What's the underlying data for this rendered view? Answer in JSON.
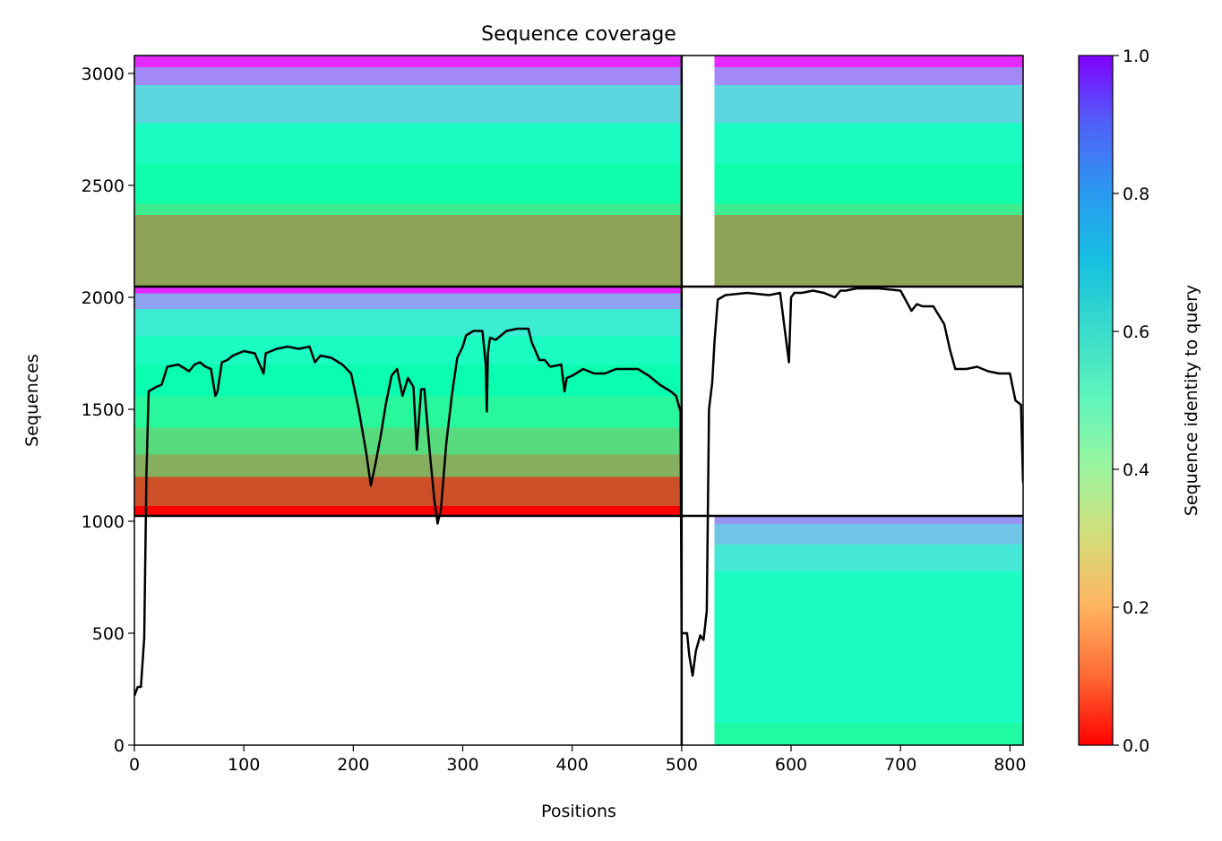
{
  "chart_data": {
    "type": "heatmap",
    "title": "Sequence coverage",
    "xlabel": "Positions",
    "ylabel": "Sequences",
    "xlim": [
      0,
      812
    ],
    "ylim": [
      0,
      3080
    ],
    "x_ticks": [
      0,
      100,
      200,
      300,
      400,
      500,
      600,
      700,
      800
    ],
    "y_ticks": [
      0,
      500,
      1000,
      1500,
      2000,
      2500,
      3000
    ],
    "colorbar": {
      "label": "Sequence identity to query",
      "range": [
        0,
        1
      ],
      "ticks": [
        "0.0",
        "0.2",
        "0.4",
        "0.6",
        "0.8",
        "1.0"
      ],
      "colormap": "rainbow_r",
      "colors": [
        "#ff0000",
        "#ffb360",
        "#80ffb4",
        "#00b4eb",
        "#8000ff"
      ]
    },
    "blocks": [
      {
        "name": "block-top-left",
        "x": [
          0,
          499
        ],
        "y": [
          2048,
          3080
        ],
        "bands": [
          [
            2048,
            2370,
            0.22
          ],
          [
            2370,
            2420,
            0.38
          ],
          [
            2420,
            2600,
            0.47
          ],
          [
            2600,
            2780,
            0.55
          ],
          [
            2780,
            2950,
            0.68
          ],
          [
            2950,
            3030,
            0.82
          ],
          [
            3030,
            3080,
            0.95
          ]
        ]
      },
      {
        "name": "block-top-right",
        "x": [
          530,
          812
        ],
        "y": [
          2048,
          3080
        ],
        "bands": [
          [
            2048,
            2370,
            0.22
          ],
          [
            2370,
            2420,
            0.38
          ],
          [
            2420,
            2600,
            0.47
          ],
          [
            2600,
            2780,
            0.55
          ],
          [
            2780,
            2950,
            0.68
          ],
          [
            2950,
            3030,
            0.82
          ],
          [
            3030,
            3080,
            0.95
          ]
        ]
      },
      {
        "name": "block-middle-left",
        "x": [
          0,
          499
        ],
        "y": [
          1024,
          2048
        ],
        "bands": [
          [
            1024,
            1070,
            0.0
          ],
          [
            1070,
            1200,
            0.1
          ],
          [
            1200,
            1300,
            0.24
          ],
          [
            1300,
            1420,
            0.33
          ],
          [
            1420,
            1560,
            0.42
          ],
          [
            1560,
            1700,
            0.48
          ],
          [
            1700,
            1830,
            0.55
          ],
          [
            1830,
            1950,
            0.62
          ],
          [
            1950,
            2020,
            0.78
          ],
          [
            2020,
            2048,
            0.95
          ]
        ]
      },
      {
        "name": "block-bottom-right",
        "x": [
          530,
          812
        ],
        "y": [
          0,
          1024
        ],
        "bands": [
          [
            0,
            100,
            0.44
          ],
          [
            100,
            780,
            0.55
          ],
          [
            780,
            900,
            0.64
          ],
          [
            900,
            990,
            0.72
          ],
          [
            990,
            1024,
            0.8
          ]
        ]
      }
    ],
    "boundaries": {
      "x": 500,
      "y": [
        1024,
        2048
      ]
    },
    "coverage_line": {
      "name": "Coverage",
      "x": [
        0,
        3,
        6,
        9,
        11,
        13,
        20,
        25,
        30,
        40,
        50,
        55,
        60,
        65,
        70,
        74,
        76,
        80,
        85,
        90,
        100,
        110,
        118,
        120,
        130,
        140,
        150,
        160,
        165,
        170,
        180,
        190,
        198,
        205,
        212,
        216,
        220,
        225,
        230,
        235,
        240,
        245,
        250,
        255,
        258,
        262,
        265,
        270,
        274,
        277,
        280,
        285,
        290,
        295,
        300,
        303,
        310,
        318,
        321,
        322,
        323,
        325,
        330,
        340,
        350,
        360,
        363,
        370,
        375,
        380,
        390,
        393,
        395,
        400,
        410,
        420,
        430,
        440,
        450,
        460,
        470,
        480,
        490,
        495,
        499,
        500,
        505,
        507,
        510,
        513,
        517,
        520,
        523,
        525,
        528,
        530,
        533,
        540,
        560,
        580,
        590,
        598,
        600,
        603,
        610,
        620,
        630,
        640,
        645,
        650,
        660,
        680,
        700,
        710,
        715,
        720,
        730,
        740,
        745,
        750,
        755,
        760,
        770,
        780,
        790,
        800,
        805,
        810,
        812
      ],
      "y": [
        220,
        260,
        260,
        480,
        1200,
        1580,
        1600,
        1610,
        1690,
        1700,
        1670,
        1700,
        1710,
        1690,
        1680,
        1560,
        1580,
        1710,
        1720,
        1740,
        1760,
        1750,
        1660,
        1750,
        1770,
        1780,
        1770,
        1780,
        1710,
        1740,
        1730,
        1700,
        1660,
        1500,
        1300,
        1160,
        1250,
        1380,
        1530,
        1650,
        1680,
        1560,
        1640,
        1600,
        1320,
        1590,
        1590,
        1300,
        1100,
        990,
        1050,
        1350,
        1560,
        1730,
        1780,
        1830,
        1850,
        1850,
        1700,
        1490,
        1750,
        1820,
        1810,
        1850,
        1860,
        1860,
        1800,
        1720,
        1720,
        1690,
        1700,
        1580,
        1640,
        1650,
        1680,
        1660,
        1660,
        1680,
        1680,
        1680,
        1650,
        1610,
        1580,
        1560,
        1490,
        500,
        500,
        400,
        310,
        420,
        490,
        470,
        600,
        1500,
        1620,
        1800,
        1990,
        2010,
        2020,
        2010,
        2020,
        1710,
        2000,
        2020,
        2020,
        2030,
        2020,
        2000,
        2030,
        2030,
        2040,
        2040,
        2030,
        1940,
        1970,
        1960,
        1960,
        1880,
        1770,
        1680,
        1680,
        1680,
        1690,
        1670,
        1660,
        1660,
        1540,
        1520,
        1170
      ]
    }
  }
}
